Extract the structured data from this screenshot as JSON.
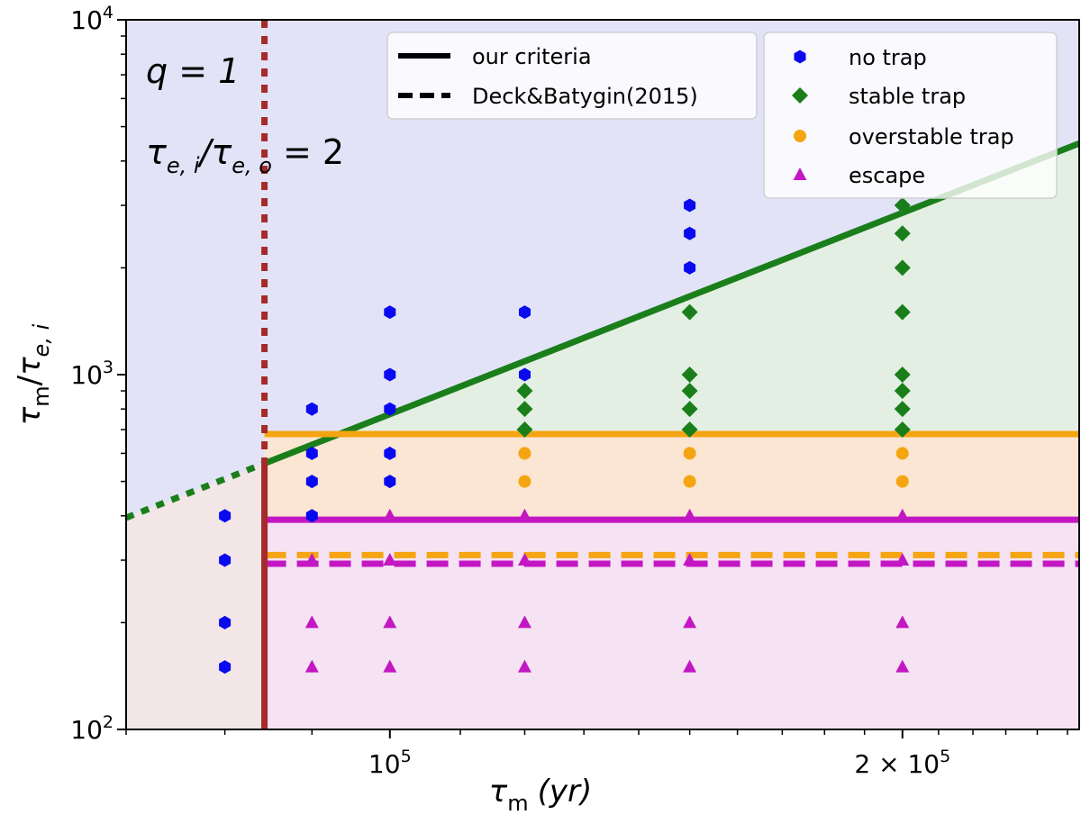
{
  "chart_data": {
    "type": "scatter",
    "xscale": "log",
    "yscale": "log",
    "xlim": [
      70000,
      254000
    ],
    "ylim": [
      100,
      10000
    ],
    "xlabel_main": "τ",
    "xlabel_sub": "m",
    "xlabel_unit": "(yr)",
    "ylabel_num": "τ",
    "ylabel_num_sub": "m",
    "ylabel_den": "τ",
    "ylabel_den_sub": "e, i",
    "x_ticks": [
      {
        "value": 100000,
        "base": "10",
        "exp": "5"
      },
      {
        "value": 200000,
        "base": "2 × 10",
        "exp": "5"
      }
    ],
    "y_ticks": [
      {
        "value": 100,
        "base": "10",
        "exp": "2"
      },
      {
        "value": 1000,
        "base": "10",
        "exp": "3"
      },
      {
        "value": 10000,
        "base": "10",
        "exp": "4"
      }
    ],
    "annotations": {
      "q_text": "q = 1",
      "ratio_text_a": "τ",
      "ratio_sub_a": "e, i",
      "ratio_slash": "/τ",
      "ratio_sub_b": "e, o",
      "ratio_value": "=  2"
    },
    "regions": {
      "no_trap_color": "#e3e3f8",
      "stable_color": "#e3efe3",
      "overstable_color": "#fbe6d3",
      "escape_color": "#f5e3f3",
      "left_low_color": "#f2e6e6"
    },
    "lines": {
      "tau_crit_x": 84400,
      "stable_line": {
        "color": "#1a7f1a",
        "x0": 70000,
        "y0": 395,
        "slope": 1.885
      },
      "overstable_solid_y": 680,
      "overstable_color": "#f5a511",
      "escape_solid_y": 390,
      "escape_color": "#c317c3",
      "overstable_dashed_y": 310,
      "escape_dashed_y": 293,
      "vertical_color": "#a52a2a"
    },
    "legend_lines": [
      {
        "label": "our criteria",
        "style": "solid"
      },
      {
        "label": "Deck&Batygin(2015)",
        "style": "dashed"
      }
    ],
    "series": [
      {
        "name": "no trap",
        "marker": "hexagon",
        "color": "#0a0af0",
        "points": [
          [
            80000,
            400
          ],
          [
            80000,
            300
          ],
          [
            80000,
            200
          ],
          [
            80000,
            150
          ],
          [
            90000,
            800
          ],
          [
            90000,
            600
          ],
          [
            90000,
            500
          ],
          [
            90000,
            400
          ],
          [
            100000,
            1500
          ],
          [
            100000,
            1000
          ],
          [
            100000,
            800
          ],
          [
            100000,
            600
          ],
          [
            100000,
            500
          ],
          [
            120000,
            1500
          ],
          [
            120000,
            1000
          ],
          [
            150000,
            3000
          ],
          [
            150000,
            2500
          ],
          [
            150000,
            2000
          ]
        ]
      },
      {
        "name": "stable trap",
        "marker": "diamond",
        "color": "#1a7f1a",
        "points": [
          [
            120000,
            900
          ],
          [
            120000,
            800
          ],
          [
            120000,
            700
          ],
          [
            150000,
            1500
          ],
          [
            150000,
            1000
          ],
          [
            150000,
            900
          ],
          [
            150000,
            800
          ],
          [
            150000,
            700
          ],
          [
            200000,
            3000
          ],
          [
            200000,
            2500
          ],
          [
            200000,
            2000
          ],
          [
            200000,
            1500
          ],
          [
            200000,
            1000
          ],
          [
            200000,
            900
          ],
          [
            200000,
            800
          ],
          [
            200000,
            700
          ]
        ]
      },
      {
        "name": "overstable trap",
        "marker": "circle",
        "color": "#f5a511",
        "points": [
          [
            120000,
            600
          ],
          [
            120000,
            500
          ],
          [
            150000,
            600
          ],
          [
            150000,
            500
          ],
          [
            200000,
            600
          ],
          [
            200000,
            500
          ]
        ]
      },
      {
        "name": "escape",
        "marker": "triangle",
        "color": "#c317c3",
        "points": [
          [
            90000,
            300
          ],
          [
            90000,
            200
          ],
          [
            90000,
            150
          ],
          [
            100000,
            400
          ],
          [
            100000,
            300
          ],
          [
            100000,
            200
          ],
          [
            100000,
            150
          ],
          [
            120000,
            400
          ],
          [
            120000,
            300
          ],
          [
            120000,
            200
          ],
          [
            120000,
            150
          ],
          [
            150000,
            400
          ],
          [
            150000,
            300
          ],
          [
            150000,
            200
          ],
          [
            150000,
            150
          ],
          [
            200000,
            400
          ],
          [
            200000,
            300
          ],
          [
            200000,
            200
          ],
          [
            200000,
            150
          ]
        ]
      }
    ]
  }
}
